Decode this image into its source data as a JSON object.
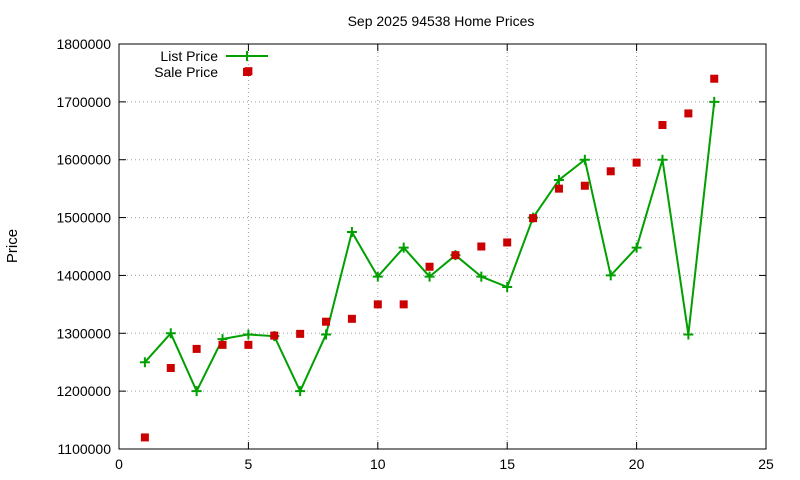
{
  "chart_data": {
    "type": "line",
    "title": "Sep 2025 94538 Home Prices",
    "xlabel": "",
    "ylabel": "Price",
    "xlim": [
      0,
      25
    ],
    "ylim": [
      1100000,
      1800000
    ],
    "x_ticks": [
      "0",
      "5",
      "10",
      "15",
      "20",
      "25"
    ],
    "y_ticks": [
      "1100000",
      "1200000",
      "1300000",
      "1400000",
      "1500000",
      "1600000",
      "1700000",
      "1800000"
    ],
    "grid": true,
    "legend_position": "top-left",
    "series": [
      {
        "name": "List Price",
        "style": "line-with-plus-markers",
        "color": "#00a000",
        "x": [
          1,
          2,
          3,
          4,
          5,
          6,
          7,
          8,
          9,
          10,
          11,
          12,
          13,
          14,
          15,
          16,
          17,
          18,
          19,
          20,
          21,
          22,
          23
        ],
        "values": [
          1250000,
          1300000,
          1200000,
          1290000,
          1298000,
          1295000,
          1200000,
          1298000,
          1475000,
          1398000,
          1448000,
          1398000,
          1435000,
          1398000,
          1380000,
          1500000,
          1565000,
          1600000,
          1400000,
          1448000,
          1600000,
          1298000,
          1700000
        ]
      },
      {
        "name": "Sale Price",
        "style": "square-markers",
        "color": "#cc0000",
        "x": [
          1,
          2,
          3,
          4,
          5,
          5,
          6,
          7,
          8,
          9,
          10,
          11,
          12,
          13,
          14,
          15,
          16,
          17,
          18,
          19,
          20,
          21,
          22,
          23
        ],
        "values": [
          1120000,
          1240000,
          1273000,
          1280000,
          1280000,
          1753000,
          1296000,
          1299000,
          1320000,
          1325000,
          1350000,
          1350000,
          1415000,
          1435000,
          1450000,
          1457000,
          1499000,
          1550000,
          1555000,
          1580000,
          1595000,
          1660000,
          1680000,
          1740000
        ]
      }
    ]
  }
}
